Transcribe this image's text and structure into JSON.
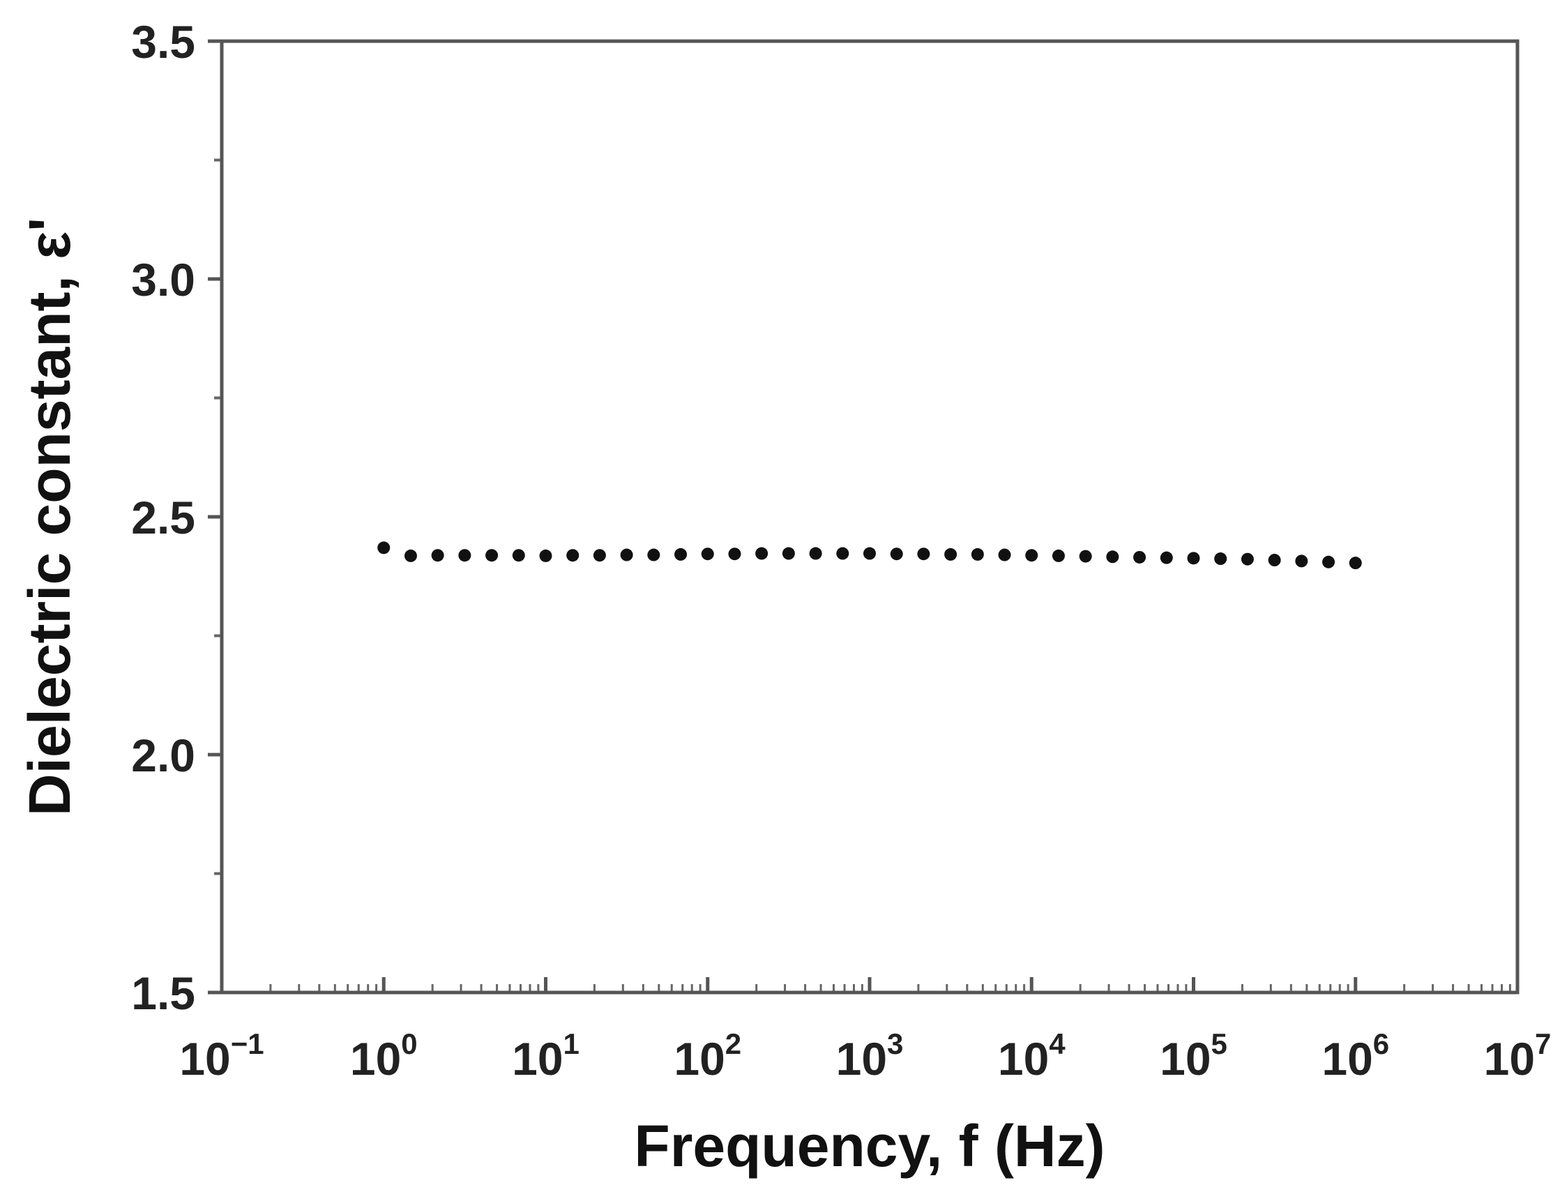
{
  "chart_data": {
    "type": "scatter",
    "xlabel": "Frequency, f (Hz)",
    "ylabel": "Dielectric constant, ε'",
    "xscale": "log",
    "xlim": [
      0.1,
      10000000
    ],
    "ylim": [
      1.5,
      3.5
    ],
    "x_ticks": [
      {
        "value": 0.1,
        "base": "10",
        "exp": "−1"
      },
      {
        "value": 1,
        "base": "10",
        "exp": "0"
      },
      {
        "value": 10,
        "base": "10",
        "exp": "1"
      },
      {
        "value": 100,
        "base": "10",
        "exp": "2"
      },
      {
        "value": 1000,
        "base": "10",
        "exp": "3"
      },
      {
        "value": 10000,
        "base": "10",
        "exp": "4"
      },
      {
        "value": 100000,
        "base": "10",
        "exp": "5"
      },
      {
        "value": 1000000,
        "base": "10",
        "exp": "6"
      },
      {
        "value": 10000000,
        "base": "10",
        "exp": "7"
      }
    ],
    "y_ticks": [
      {
        "value": 1.5,
        "label": "1.5"
      },
      {
        "value": 2.0,
        "label": "2.0"
      },
      {
        "value": 2.5,
        "label": "2.5"
      },
      {
        "value": 3.0,
        "label": "3.0"
      },
      {
        "value": 3.5,
        "label": "3.5"
      }
    ],
    "grid": false,
    "marker_color": "#111111",
    "series": [
      {
        "x": [
          1.0,
          1.468,
          2.154,
          3.162,
          4.642,
          6.813,
          10.0,
          14.68,
          21.54,
          31.62,
          46.42,
          68.13,
          100.0,
          146.8,
          215.4,
          316.2,
          464.2,
          681.3,
          1000.0,
          1468,
          2154,
          3162,
          4642,
          6813,
          10000,
          14678,
          21544,
          31623,
          46416,
          68129,
          100000,
          146780,
          215440,
          316230,
          464160,
          681290,
          1000000
        ],
        "y": [
          2.435,
          2.418,
          2.419,
          2.419,
          2.419,
          2.419,
          2.418,
          2.419,
          2.419,
          2.42,
          2.42,
          2.421,
          2.422,
          2.422,
          2.423,
          2.423,
          2.423,
          2.423,
          2.423,
          2.422,
          2.422,
          2.421,
          2.421,
          2.42,
          2.419,
          2.418,
          2.417,
          2.416,
          2.415,
          2.414,
          2.413,
          2.412,
          2.411,
          2.409,
          2.407,
          2.405,
          2.403
        ]
      }
    ]
  }
}
